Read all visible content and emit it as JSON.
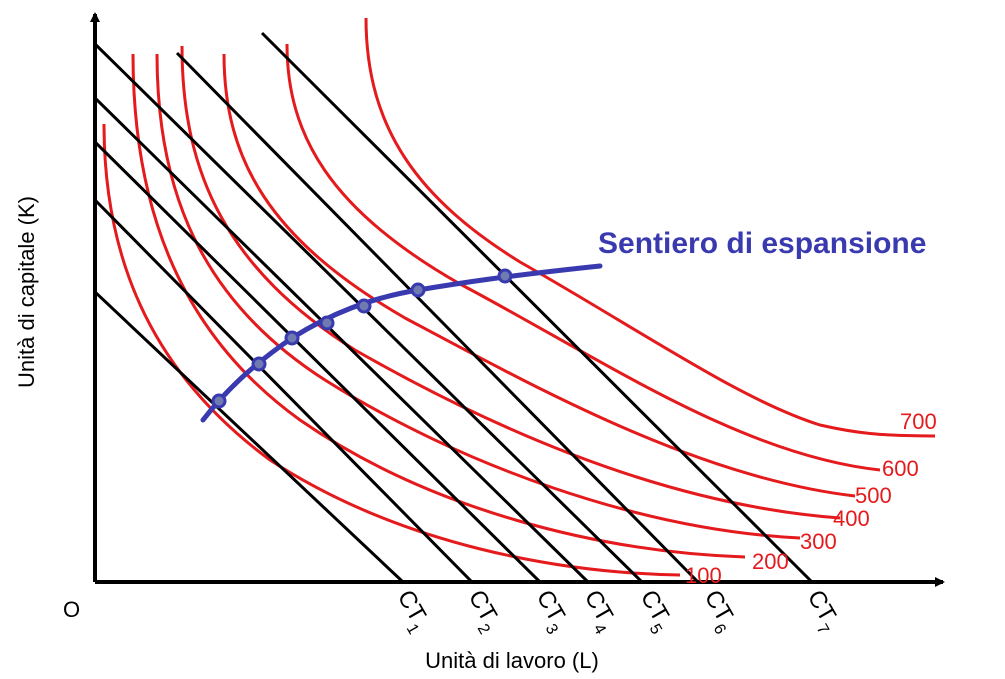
{
  "origin_label": "O",
  "x_axis_label": "Unità di lavoro (L)",
  "y_axis_label": "Unità di capitale (K)",
  "expansion_path_label": "Sentiero di espansione",
  "isoquants": [
    {
      "label": "100"
    },
    {
      "label": "200"
    },
    {
      "label": "300"
    },
    {
      "label": "400"
    },
    {
      "label": "500"
    },
    {
      "label": "600"
    },
    {
      "label": "700"
    }
  ],
  "isocost_lines": [
    {
      "base": "CT",
      "sub": "1"
    },
    {
      "base": "CT",
      "sub": "2"
    },
    {
      "base": "CT",
      "sub": "3"
    },
    {
      "base": "CT",
      "sub": "4"
    },
    {
      "base": "CT",
      "sub": "5"
    },
    {
      "base": "CT",
      "sub": "6"
    },
    {
      "base": "CT",
      "sub": "7"
    }
  ],
  "colors": {
    "isoquant": "#e41a1c",
    "isocost": "#000000",
    "expansion_path": "#3a3ab0",
    "tangency_point": "#6f7bb0"
  }
}
